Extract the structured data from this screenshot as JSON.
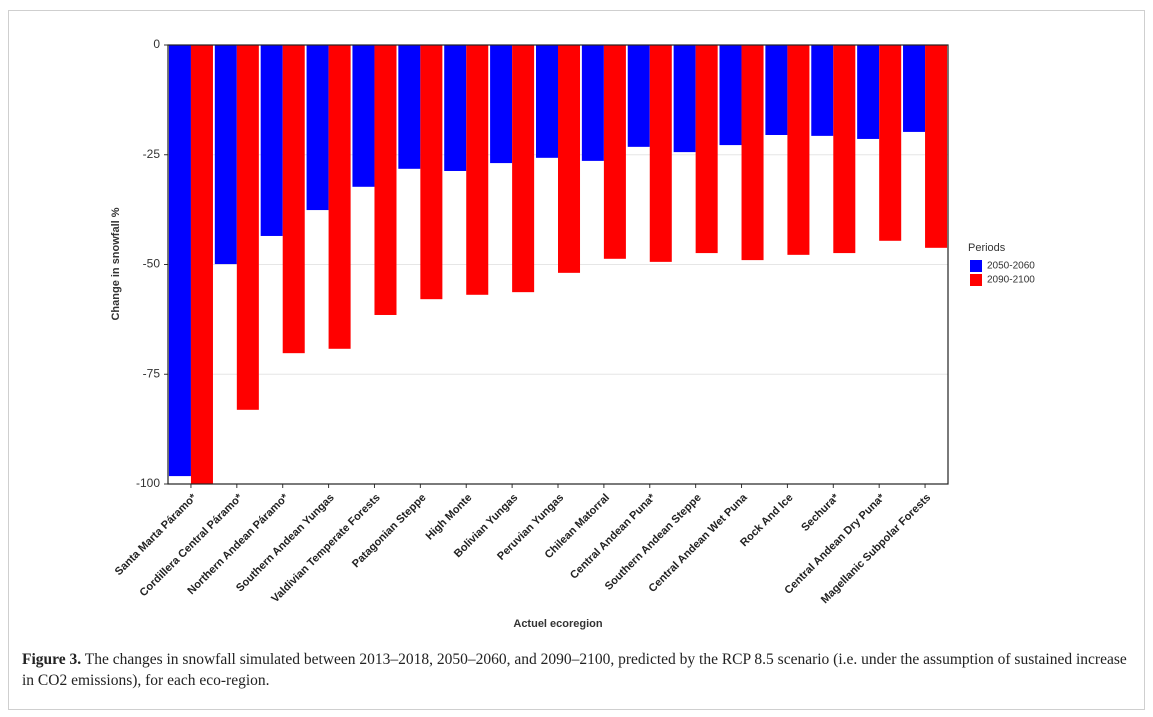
{
  "chart_data": {
    "type": "bar",
    "x_label": "Actuel ecoregion",
    "y_label": "Change in snowfall %",
    "legend_title": "Periods",
    "categories": [
      "Santa Marta Páramo*",
      "Cordillera Central Páramo*",
      "Northern Andean Páramo*",
      "Southern Andean Yungas",
      "Valdivian Temperate Forests",
      "Patagonian Steppe",
      "High Monte",
      "Bolivian Yungas",
      "Peruvian Yungas",
      "Chilean Matorral",
      "Central Andean Puna*",
      "Southern Andean Steppe",
      "Central Andean Wet Puna",
      "Rock And Ice",
      "Sechura*",
      "Central Andean Dry Puna*",
      "Magellanic Subpolar Forests"
    ],
    "series": [
      {
        "name": "2050-2060",
        "color": "#0000ff",
        "values": [
          -98.2,
          -49.9,
          -43.5,
          -37.6,
          -32.3,
          -28.2,
          -28.7,
          -26.9,
          -25.7,
          -26.4,
          -23.2,
          -24.4,
          -22.8,
          -20.5,
          -20.7,
          -21.4,
          -19.8
        ]
      },
      {
        "name": "2090-2100",
        "color": "#ff0000",
        "values": [
          -100,
          -83.1,
          -70.2,
          -69.2,
          -61.5,
          -57.9,
          -56.9,
          -56.3,
          -51.9,
          -48.7,
          -49.4,
          -47.4,
          -49.0,
          -47.8,
          -47.4,
          -44.6,
          -46.2
        ]
      }
    ],
    "ylim": [
      -100,
      0
    ],
    "yticks": [
      0,
      -25,
      -50,
      -75,
      -100
    ],
    "grid": true,
    "legend": "right"
  },
  "caption": {
    "label": "Figure 3.",
    "text": "The changes in snowfall simulated between 2013–2018, 2050–2060, and 2090–2100, predicted by the RCP 8.5 scenario (i.e. under the assumption of sustained increase in CO2 emissions), for each eco-region."
  }
}
